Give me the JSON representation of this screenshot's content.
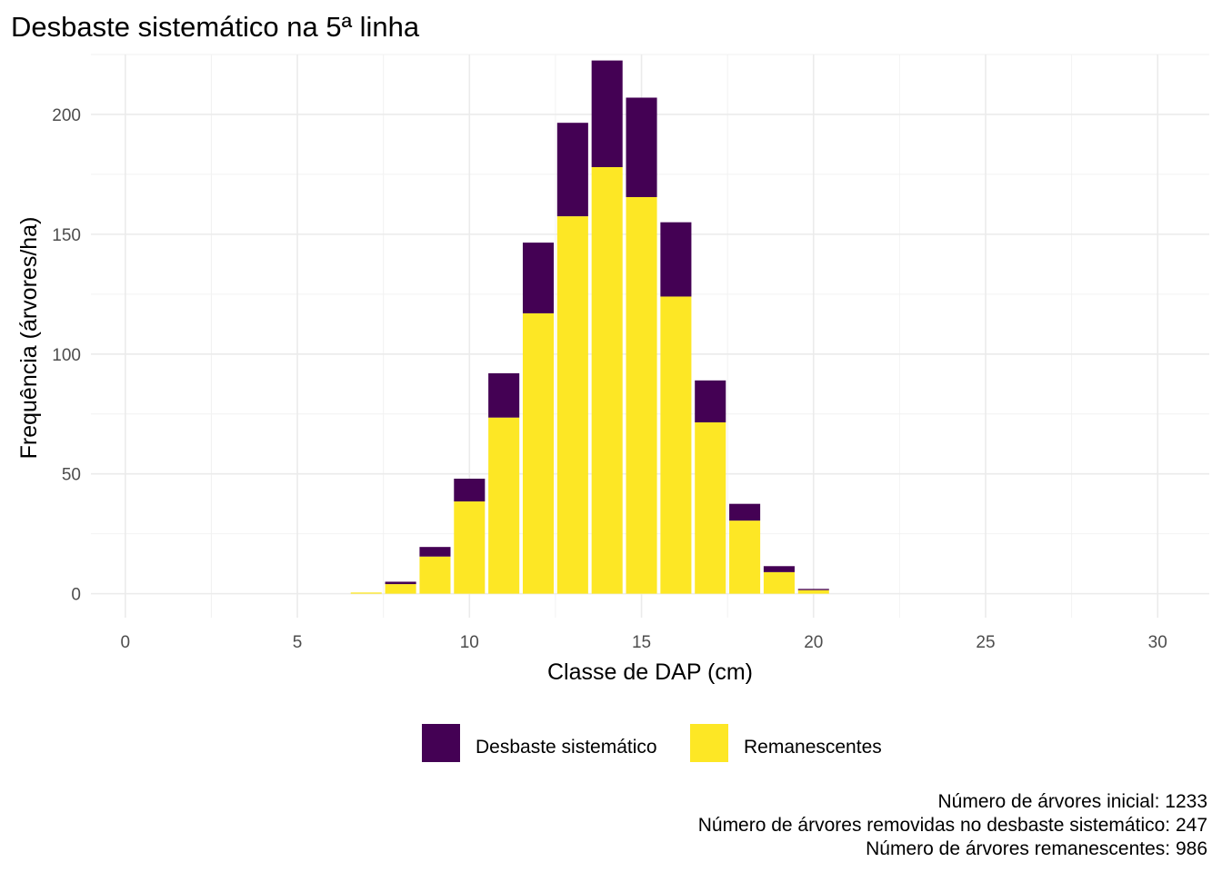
{
  "chart_data": {
    "type": "bar",
    "stacked": true,
    "title": "Desbaste sistemático na 5ª linha",
    "xlabel": "Classe de DAP (cm)",
    "ylabel": "Frequência (árvores/ha)",
    "xlim": [
      -1,
      31.5
    ],
    "ylim": [
      -10,
      225
    ],
    "x_ticks": [
      0,
      5,
      10,
      15,
      20,
      25,
      30
    ],
    "y_ticks": [
      0,
      50,
      100,
      150,
      200
    ],
    "grid": true,
    "legend_position": "bottom",
    "x": [
      7,
      8,
      9,
      10,
      11,
      12,
      13,
      14,
      15,
      16,
      17,
      18,
      19,
      20
    ],
    "series": [
      {
        "name": "Remanescentes",
        "color": "#FDE725",
        "values": [
          0.5,
          4,
          15.5,
          38.5,
          73.5,
          117,
          157.5,
          178,
          165.5,
          124,
          71.5,
          30.5,
          9,
          1.5
        ]
      },
      {
        "name": "Desbaste sistemático",
        "color": "#440154",
        "values": [
          0,
          1,
          4,
          9.5,
          18.5,
          29.5,
          39,
          44.5,
          41.5,
          31,
          17.5,
          7,
          2.5,
          0.5
        ]
      }
    ],
    "legend_order": [
      "Desbaste sistemático",
      "Remanescentes"
    ],
    "caption": [
      "Número de árvores inicial: 1233",
      "Número de árvores removidas no desbaste sistemático: 247",
      "Número de árvores remanescentes: 986"
    ]
  }
}
